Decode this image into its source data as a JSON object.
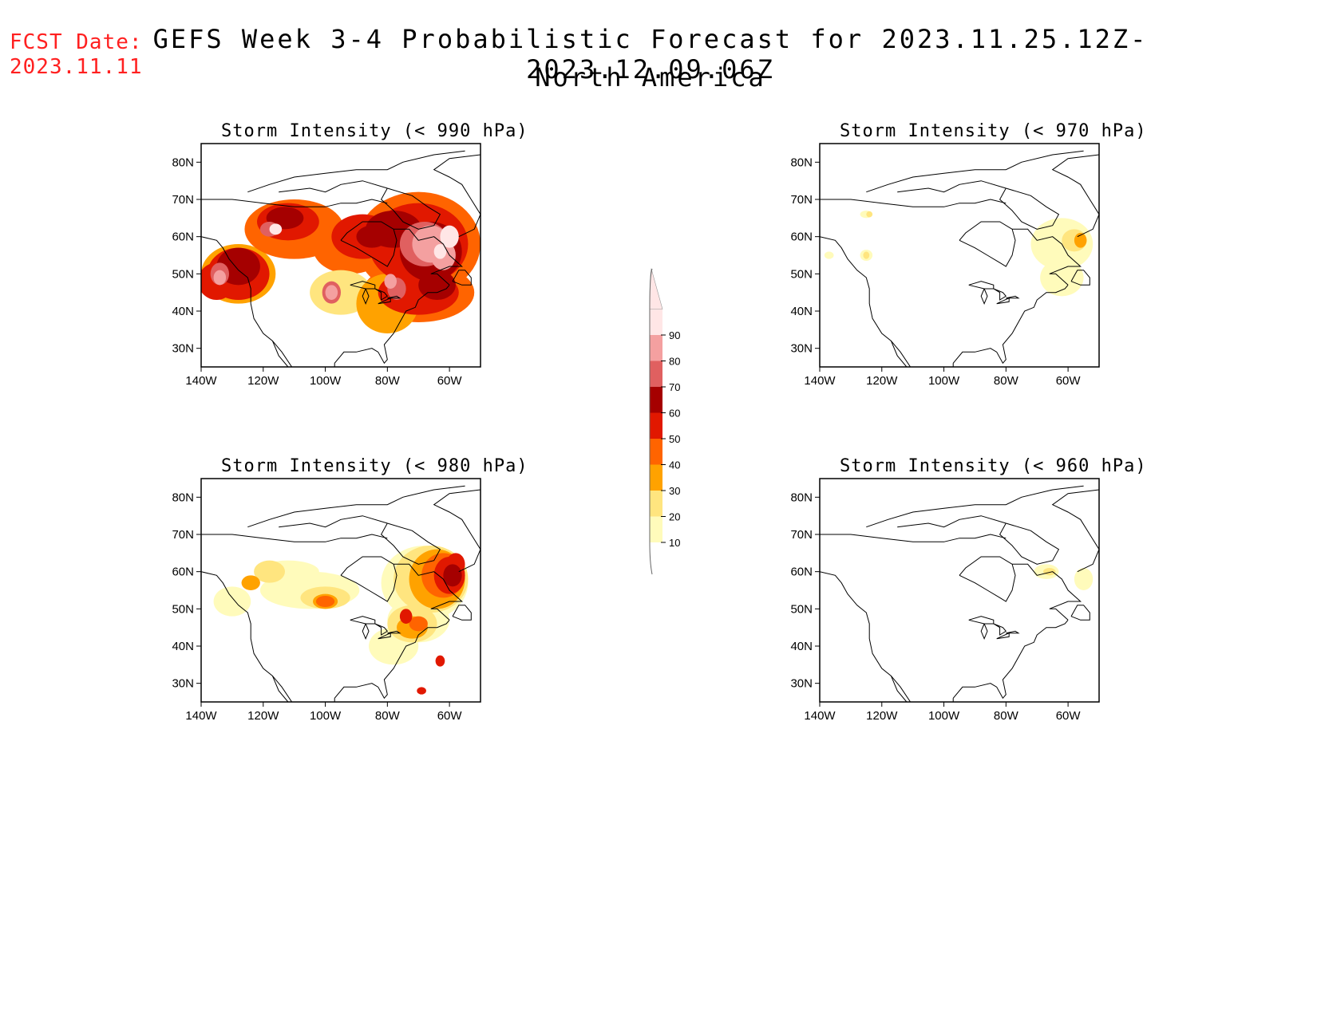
{
  "header": {
    "fcst_label": "FCST Date:",
    "fcst_date": "2023.11.11",
    "title": "GEFS Week 3-4 Probabilistic Forecast for 2023.11.25.12Z-2023.12.09.06Z",
    "subtitle": "North America"
  },
  "lat_ticks": [
    "80N",
    "70N",
    "60N",
    "50N",
    "40N",
    "30N"
  ],
  "lon_ticks": [
    "140W",
    "120W",
    "100W",
    "80W",
    "60W"
  ],
  "colorbar": {
    "levels": [
      "10",
      "20",
      "30",
      "40",
      "50",
      "60",
      "70",
      "80",
      "90"
    ],
    "colors": [
      "#fffbbb",
      "#ffe57f",
      "#ffa200",
      "#ff6400",
      "#e11800",
      "#a50000",
      "#e06060",
      "#f4a0a0",
      "#ffe6e6"
    ]
  },
  "panels": [
    {
      "id": "p990",
      "title": "Storm Intensity (< 990 hPa)",
      "coverage": "widespread high probability across Canada, north Pacific and northeast US"
    },
    {
      "id": "p970",
      "title": "Storm Intensity (< 970 hPa)",
      "coverage": "low probability near Labrador / Atlantic Canada"
    },
    {
      "id": "p980",
      "title": "Storm Intensity (< 980 hPa)",
      "coverage": "moderate probability over eastern Canada"
    },
    {
      "id": "p960",
      "title": "Storm Intensity (< 960 hPa)",
      "coverage": "minimal probability near Labrador"
    }
  ]
}
